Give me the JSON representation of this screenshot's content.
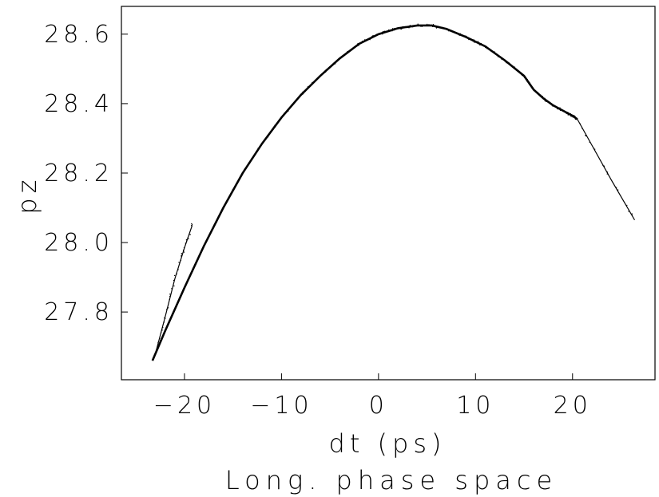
{
  "chart_data": {
    "type": "scatter",
    "title": "Long. phase space",
    "xlabel": "dt (ps)",
    "ylabel": "pz",
    "xlim": [
      -26.5,
      28.5
    ],
    "ylim": [
      27.605,
      28.68
    ],
    "x_ticks": [
      -20,
      -10,
      0,
      10,
      20
    ],
    "x_tick_labels": [
      "−20",
      "−10",
      "0",
      "10",
      "20"
    ],
    "y_ticks": [
      27.8,
      28.0,
      28.2,
      28.4,
      28.6
    ],
    "y_tick_labels": [
      "27.8",
      "28.0",
      "28.2",
      "28.4",
      "28.6"
    ],
    "grid": false,
    "legend": "none",
    "series": [
      {
        "description": "main bunch",
        "x": [
          -23.3,
          -22.0,
          -20.0,
          -18.0,
          -16.0,
          -14.0,
          -12.0,
          -10.0,
          -8.0,
          -6.0,
          -4.0,
          -2.0,
          0.0,
          2.0,
          4.0,
          5.5,
          7.0,
          9.0,
          11.0,
          13.0,
          15.0,
          16.0,
          17.0,
          18.0,
          19.0,
          20.0,
          20.5
        ],
        "y": [
          27.66,
          27.745,
          27.87,
          27.99,
          28.1,
          28.2,
          28.285,
          28.36,
          28.425,
          28.48,
          28.53,
          28.572,
          28.6,
          28.617,
          28.625,
          28.625,
          28.615,
          28.592,
          28.565,
          28.525,
          28.48,
          28.44,
          28.415,
          28.395,
          28.38,
          28.365,
          28.355
        ]
      },
      {
        "description": "leading tail",
        "x": [
          20.5,
          22.0,
          24.0,
          26.4
        ],
        "y": [
          28.355,
          28.28,
          28.18,
          28.065
        ]
      },
      {
        "description": "trailing branch",
        "x": [
          -23.0,
          -22.0,
          -21.0,
          -20.0,
          -19.2
        ],
        "y": [
          27.68,
          27.785,
          27.895,
          27.985,
          28.05
        ]
      }
    ]
  }
}
